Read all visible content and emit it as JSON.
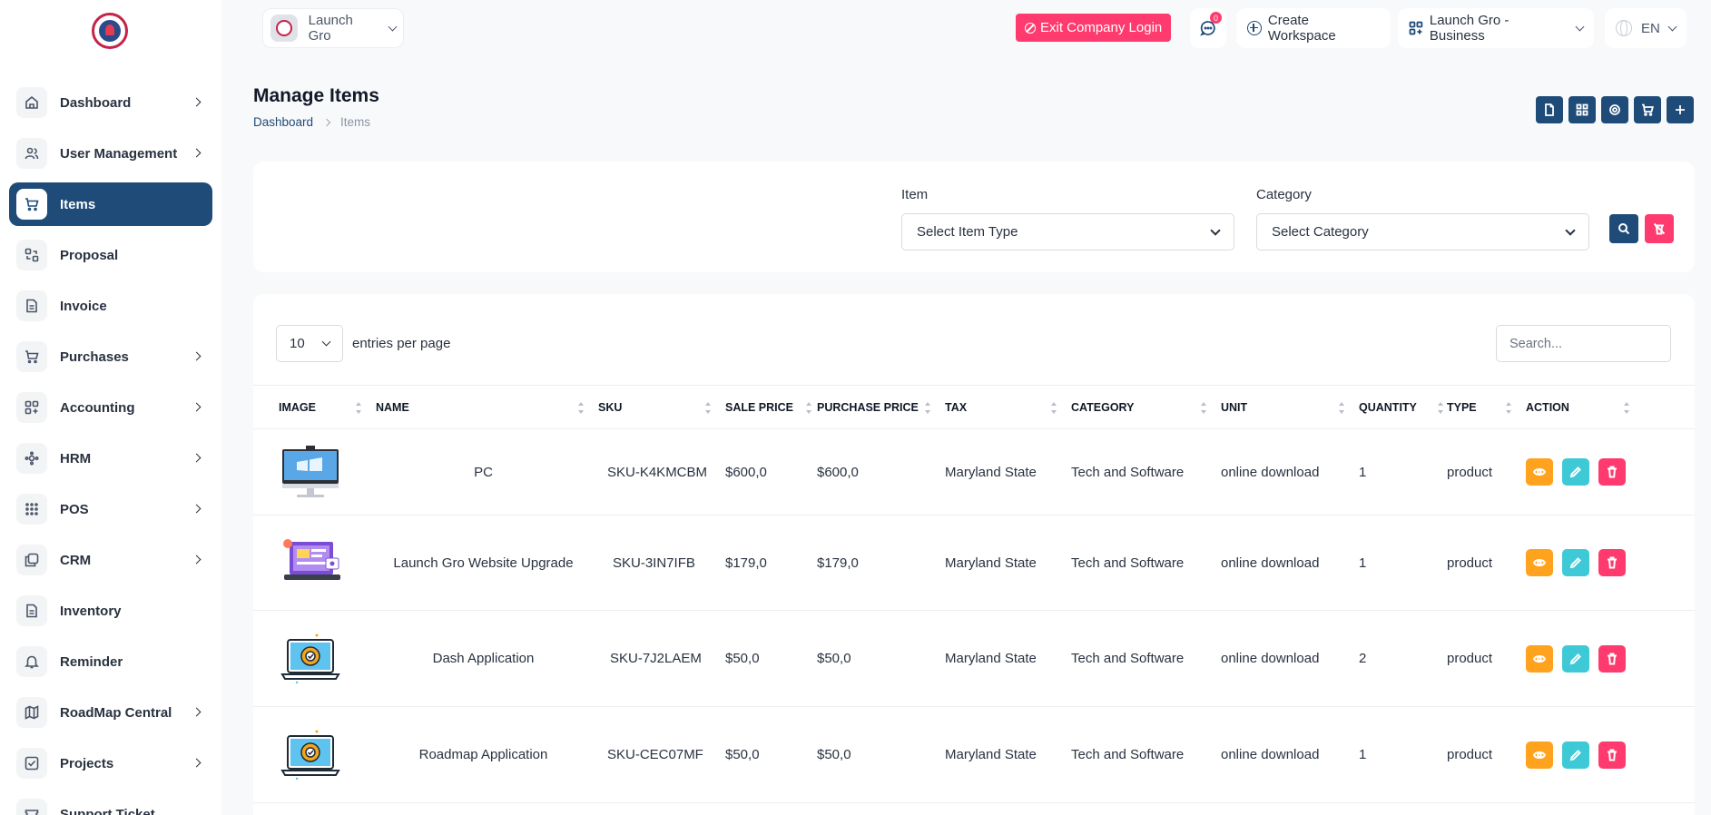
{
  "topbar": {
    "brand_name": "Launch Gro",
    "exit_label": "Exit Company Login",
    "chat_count": "0",
    "create_workspace": "Create Workspace",
    "workspace_name": "Launch Gro - Business",
    "language": "EN"
  },
  "sidebar": {
    "items": [
      {
        "label": "Dashboard",
        "icon": "home-icon",
        "has_children": true
      },
      {
        "label": "User Management",
        "icon": "users-icon",
        "has_children": true
      },
      {
        "label": "Items",
        "icon": "cart-icon",
        "has_children": false,
        "active": true
      },
      {
        "label": "Proposal",
        "icon": "proposal-icon",
        "has_children": false
      },
      {
        "label": "Invoice",
        "icon": "file-icon",
        "has_children": false
      },
      {
        "label": "Purchases",
        "icon": "cart-icon",
        "has_children": true
      },
      {
        "label": "Accounting",
        "icon": "layout-icon",
        "has_children": true
      },
      {
        "label": "HRM",
        "icon": "hrm-icon",
        "has_children": true
      },
      {
        "label": "POS",
        "icon": "grid-dots-icon",
        "has_children": true
      },
      {
        "label": "CRM",
        "icon": "crm-icon",
        "has_children": true
      },
      {
        "label": "Inventory",
        "icon": "file-icon",
        "has_children": false
      },
      {
        "label": "Reminder",
        "icon": "bell-icon",
        "has_children": false
      },
      {
        "label": "RoadMap Central",
        "icon": "map-icon",
        "has_children": true
      },
      {
        "label": "Projects",
        "icon": "checkbox-icon",
        "has_children": true
      },
      {
        "label": "Support Ticket",
        "icon": "ticket-icon",
        "has_children": false
      }
    ]
  },
  "header": {
    "title": "Manage Items",
    "breadcrumb": {
      "home": "Dashboard",
      "current": "Items"
    }
  },
  "filters": {
    "item_label": "Item",
    "item_value": "Select Item Type",
    "category_label": "Category",
    "category_value": "Select Category"
  },
  "table": {
    "entries_value": "10",
    "entries_label": "entries per page",
    "search_placeholder": "Search...",
    "columns": [
      "Image",
      "Name",
      "SKU",
      "Sale Price",
      "Purchase Price",
      "Tax",
      "Category",
      "Unit",
      "Quantity",
      "Type",
      "Action"
    ],
    "rows": [
      {
        "image": "pc-image",
        "name": "PC",
        "sku": "SKU-K4KMCBM",
        "sale_price": "$600,0",
        "purchase_price": "$600,0",
        "tax": "Maryland State",
        "category": "Tech and Software",
        "unit": "online download",
        "quantity": "1",
        "type": "product"
      },
      {
        "image": "website-image",
        "name": "Launch Gro Website Upgrade",
        "sku": "SKU-3IN7IFB",
        "sale_price": "$179,0",
        "purchase_price": "$179,0",
        "tax": "Maryland State",
        "category": "Tech and Software",
        "unit": "online download",
        "quantity": "1",
        "type": "product"
      },
      {
        "image": "laptop-gear-image",
        "name": "Dash Application",
        "sku": "SKU-7J2LAEM",
        "sale_price": "$50,0",
        "purchase_price": "$50,0",
        "tax": "Maryland State",
        "category": "Tech and Software",
        "unit": "online download",
        "quantity": "2",
        "type": "product"
      },
      {
        "image": "laptop-gear-image",
        "name": "Roadmap Application",
        "sku": "SKU-CEC07MF",
        "sale_price": "$50,0",
        "purchase_price": "$50,0",
        "tax": "Maryland State",
        "category": "Tech and Software",
        "unit": "online download",
        "quantity": "1",
        "type": "product"
      }
    ]
  },
  "colors": {
    "primary": "#1e4b78",
    "danger": "#ff3a6e",
    "warning": "#ffa21d",
    "info": "#3ec9d6"
  }
}
